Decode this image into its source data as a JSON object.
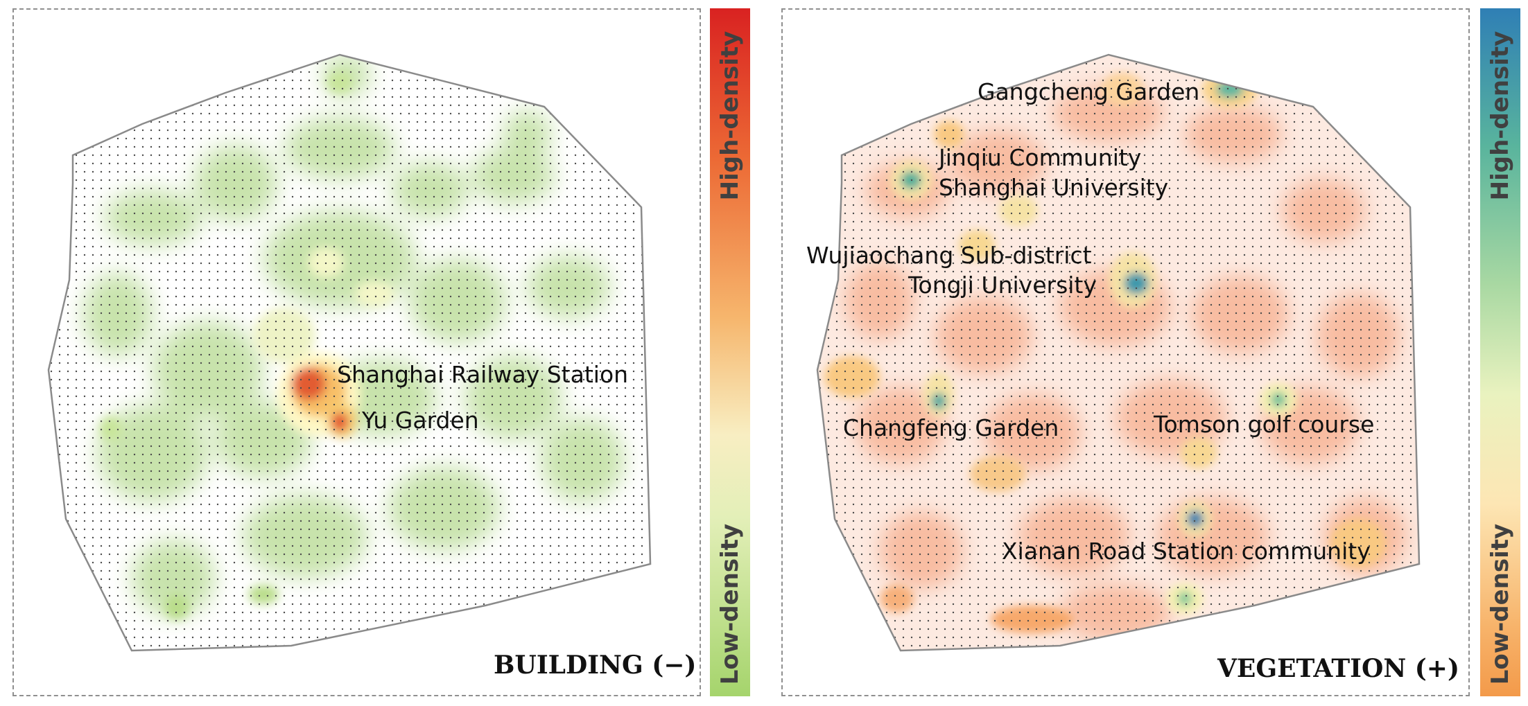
{
  "left_panel": {
    "title": "BUILDING (−)",
    "labels": [
      "Shanghai Railway Station",
      "Yu Garden"
    ],
    "legend": {
      "high": "High-density",
      "low": "Low-density",
      "colors": [
        "#d92221",
        "#ec6a35",
        "#f6b66d",
        "#f8eec2",
        "#e3efb8",
        "#a5d46c"
      ]
    }
  },
  "right_panel": {
    "title": "VEGETATION (+)",
    "labels": [
      "Gangcheng Garden",
      "Jinqiu Community",
      "Shanghai University",
      "Wujiaochang Sub-district",
      "Tongji University",
      "Changfeng Garden",
      "Tomson golf course",
      "Xianan Road Station community"
    ],
    "legend": {
      "high": "High-density",
      "low": "Low-density",
      "colors": [
        "#2f7fb5",
        "#59b49d",
        "#a8d8a2",
        "#e9f2bf",
        "#fde6b4",
        "#f7b36a",
        "#f39a4a"
      ]
    }
  }
}
